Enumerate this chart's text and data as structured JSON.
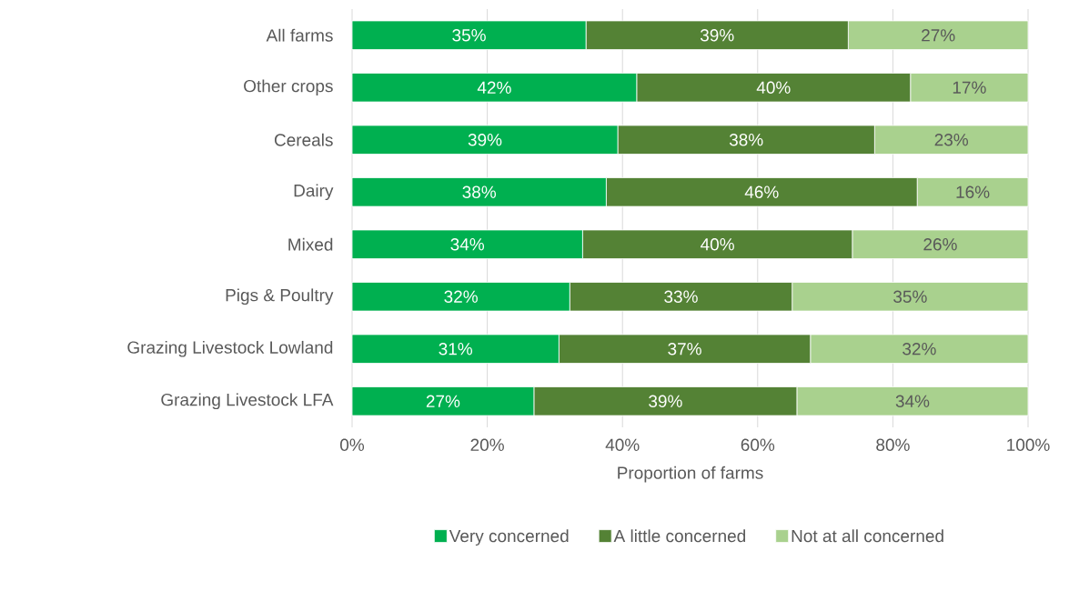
{
  "chart_data": {
    "type": "bar",
    "orientation": "horizontal",
    "stacked": true,
    "categories": [
      "All farms",
      "Other crops",
      "Cereals",
      "Dairy",
      "Mixed",
      "Pigs & Poultry",
      "Grazing Livestock Lowland",
      "Grazing Livestock LFA"
    ],
    "series": [
      {
        "name": "Very concerned",
        "color": "#00b050",
        "values": [
          34.6,
          42.1,
          39.3,
          37.6,
          34.1,
          32.2,
          30.6,
          26.9
        ],
        "value_labels": [
          "35%",
          "42%",
          "39%",
          "38%",
          "34%",
          "32%",
          "31%",
          "27%"
        ]
      },
      {
        "name": "A little concerned",
        "color": "#548235",
        "values": [
          38.8,
          40.5,
          38.0,
          46.0,
          39.9,
          32.9,
          37.2,
          38.9
        ],
        "value_labels": [
          "39%",
          "40%",
          "38%",
          "46%",
          "40%",
          "33%",
          "37%",
          "39%"
        ]
      },
      {
        "name": "Not at all concerned",
        "color": "#a9d18e",
        "values": [
          26.6,
          17.4,
          22.7,
          16.4,
          26.0,
          34.9,
          32.2,
          34.2
        ],
        "value_labels": [
          "27%",
          "17%",
          "23%",
          "16%",
          "26%",
          "35%",
          "32%",
          "34%"
        ]
      }
    ],
    "xlabel": "Proportion of farms",
    "xlim": [
      0,
      100
    ],
    "xticks": [
      {
        "value": 0,
        "label": "0%"
      },
      {
        "value": 20,
        "label": "20%"
      },
      {
        "value": 40,
        "label": "40%"
      },
      {
        "value": 60,
        "label": "60%"
      },
      {
        "value": 80,
        "label": "80%"
      },
      {
        "value": 100,
        "label": "100%"
      }
    ],
    "grid": "x",
    "legend": "bottom"
  }
}
